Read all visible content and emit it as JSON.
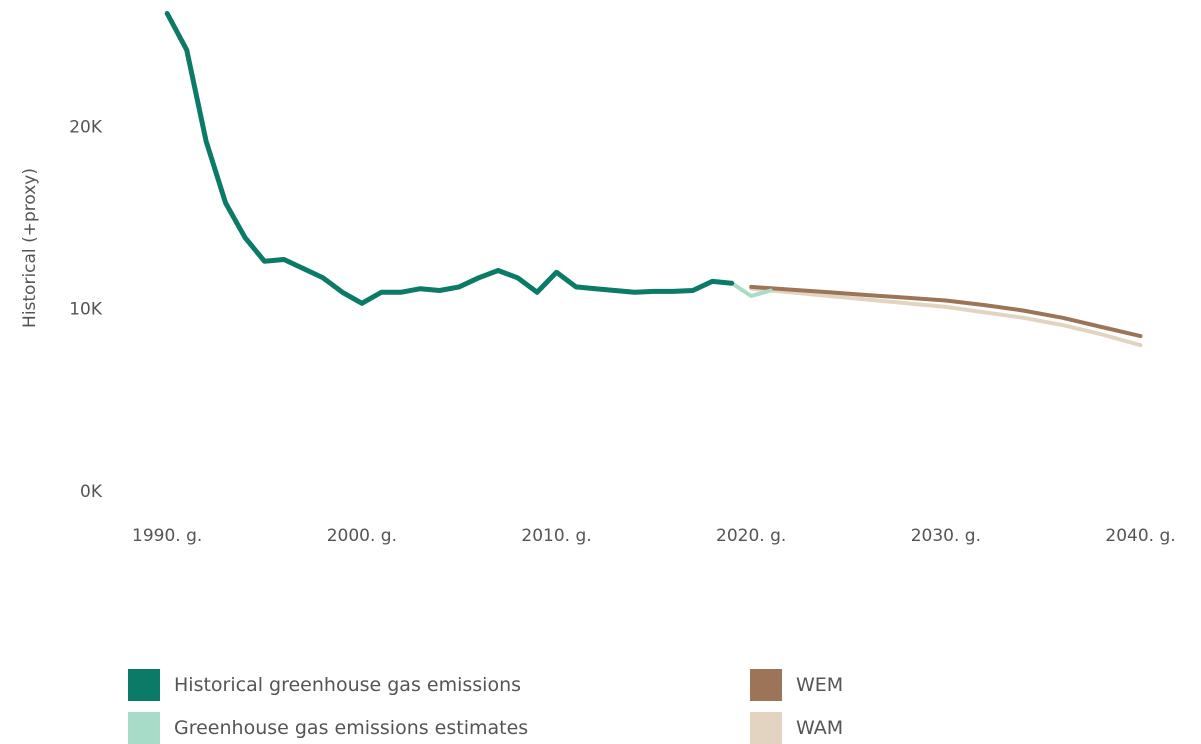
{
  "chart_data": {
    "type": "line",
    "ylabel": "Historical (+proxy)",
    "xlabel": "",
    "xlim": [
      1988.5,
      2041
    ],
    "ylim": [
      0,
      26500
    ],
    "y_ticks": [
      {
        "value": 0,
        "label": "0K"
      },
      {
        "value": 10000,
        "label": "10K"
      },
      {
        "value": 20000,
        "label": "20K"
      }
    ],
    "x_ticks": [
      {
        "value": 1990,
        "label": "1990. g."
      },
      {
        "value": 2000,
        "label": "2000. g."
      },
      {
        "value": 2010,
        "label": "2010. g."
      },
      {
        "value": 2020,
        "label": "2020. g."
      },
      {
        "value": 2030,
        "label": "2030. g."
      },
      {
        "value": 2040,
        "label": "2040. g."
      }
    ],
    "grid": false,
    "legend_position": "bottom",
    "series": [
      {
        "name": "Historical greenhouse gas emissions",
        "color": "#0b7a66",
        "x": [
          1990,
          1991,
          1992,
          1993,
          1994,
          1995,
          1996,
          1997,
          1998,
          1999,
          2000,
          2001,
          2002,
          2003,
          2004,
          2005,
          2006,
          2007,
          2008,
          2009,
          2010,
          2011,
          2012,
          2013,
          2014,
          2015,
          2016,
          2017,
          2018,
          2019
        ],
        "y": [
          26200,
          24200,
          19200,
          15800,
          13900,
          12600,
          12700,
          12200,
          11700,
          10900,
          10300,
          10900,
          10900,
          11100,
          11000,
          11200,
          11700,
          12100,
          11700,
          10900,
          12000,
          11200,
          11100,
          11000,
          10900,
          10950,
          10950,
          11000,
          11500,
          11400
        ]
      },
      {
        "name": "Greenhouse gas emissions estimates",
        "color": "#a8dcc8",
        "x": [
          2019,
          2020,
          2021
        ],
        "y": [
          11400,
          10700,
          11000
        ]
      },
      {
        "name": "WEM",
        "color": "#9c7457",
        "x": [
          2020,
          2022,
          2024,
          2026,
          2028,
          2030,
          2032,
          2034,
          2036,
          2038,
          2040
        ],
        "y": [
          11200,
          11050,
          10900,
          10750,
          10600,
          10450,
          10200,
          9900,
          9500,
          9000,
          8500
        ]
      },
      {
        "name": "WAM",
        "color": "#e3d4c2",
        "x": [
          2020,
          2022,
          2024,
          2026,
          2028,
          2030,
          2032,
          2034,
          2036,
          2038,
          2040
        ],
        "y": [
          11100,
          10900,
          10700,
          10500,
          10300,
          10100,
          9800,
          9500,
          9100,
          8600,
          8000
        ]
      }
    ]
  }
}
